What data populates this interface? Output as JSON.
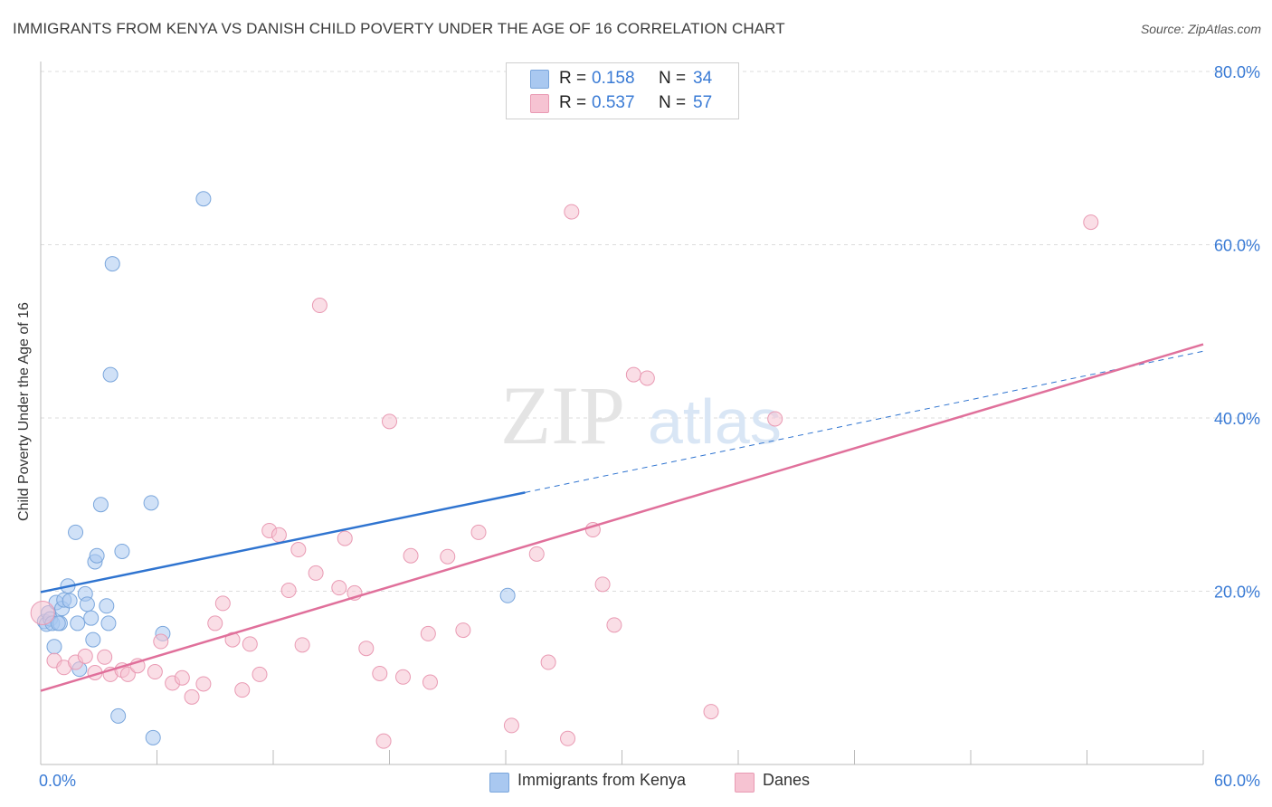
{
  "header": {
    "title": "IMMIGRANTS FROM KENYA VS DANISH CHILD POVERTY UNDER THE AGE OF 16 CORRELATION CHART",
    "source": "Source: ZipAtlas.com"
  },
  "watermark": {
    "zip": "ZIP",
    "atlas": "atlas"
  },
  "legend_top": {
    "r_label": "R =",
    "n_label": "N =",
    "rows": [
      {
        "r": "0.158",
        "n": "34"
      },
      {
        "r": "0.537",
        "n": "57"
      }
    ]
  },
  "colors": {
    "kenya_fill": "#a9c8f0",
    "kenya_stroke": "#7aa6dc",
    "kenya_line": "#2f74d0",
    "danes_fill": "#f6c3d2",
    "danes_stroke": "#e99ab3",
    "danes_line": "#e0709b",
    "tick_text": "#3a7bd5",
    "grid": "#dcdcdc"
  },
  "chart_data": {
    "type": "scatter",
    "title": "IMMIGRANTS FROM KENYA VS DANISH CHILD POVERTY UNDER THE AGE OF 16 CORRELATION CHART",
    "xlabel": "",
    "ylabel": "Child Poverty Under the Age of 16",
    "xlim": [
      0,
      60
    ],
    "ylim": [
      0,
      80
    ],
    "x_tick_labels": [
      "0.0%",
      "60.0%"
    ],
    "y_ticks": [
      20,
      40,
      60,
      80
    ],
    "y_tick_labels": [
      "20.0%",
      "40.0%",
      "60.0%",
      "80.0%"
    ],
    "grid": true,
    "legend_position": "top-center",
    "series": [
      {
        "name": "Immigrants from Kenya",
        "r": 0.158,
        "n": 34,
        "points": [
          [
            0.2,
            16.5
          ],
          [
            0.3,
            16.2
          ],
          [
            0.4,
            17.5
          ],
          [
            0.5,
            16.8
          ],
          [
            0.6,
            16.3
          ],
          [
            0.7,
            13.6
          ],
          [
            0.8,
            18.7
          ],
          [
            1.0,
            16.3
          ],
          [
            1.1,
            18.0
          ],
          [
            1.2,
            19.0
          ],
          [
            1.4,
            20.6
          ],
          [
            1.5,
            18.9
          ],
          [
            1.8,
            26.8
          ],
          [
            1.9,
            16.3
          ],
          [
            2.0,
            11.0
          ],
          [
            2.3,
            19.7
          ],
          [
            2.4,
            18.5
          ],
          [
            2.6,
            16.9
          ],
          [
            2.7,
            14.4
          ],
          [
            2.8,
            23.4
          ],
          [
            2.9,
            24.1
          ],
          [
            3.1,
            30.0
          ],
          [
            3.4,
            18.3
          ],
          [
            3.5,
            16.3
          ],
          [
            3.7,
            57.8
          ],
          [
            3.6,
            45.0
          ],
          [
            4.2,
            24.6
          ],
          [
            4.0,
            5.6
          ],
          [
            5.7,
            30.2
          ],
          [
            5.8,
            3.1
          ],
          [
            6.3,
            15.1
          ],
          [
            8.4,
            65.3
          ],
          [
            24.1,
            19.5
          ],
          [
            0.9,
            16.3
          ]
        ],
        "trend": {
          "x0": 0,
          "y0": 19.9,
          "x1": 25,
          "y1": 31.4,
          "dashed_to_x": 60,
          "dashed_to_y": 47.7
        }
      },
      {
        "name": "Danes",
        "r": 0.537,
        "n": 57,
        "points": [
          [
            0.1,
            17.5
          ],
          [
            0.7,
            12.0
          ],
          [
            1.2,
            11.2
          ],
          [
            1.8,
            11.8
          ],
          [
            2.3,
            12.5
          ],
          [
            2.8,
            10.6
          ],
          [
            3.3,
            12.4
          ],
          [
            3.6,
            10.4
          ],
          [
            4.2,
            10.9
          ],
          [
            4.5,
            10.4
          ],
          [
            5.0,
            11.4
          ],
          [
            5.9,
            10.7
          ],
          [
            6.2,
            14.2
          ],
          [
            6.8,
            9.4
          ],
          [
            7.3,
            10.0
          ],
          [
            7.8,
            7.8
          ],
          [
            8.4,
            9.3
          ],
          [
            9.0,
            16.3
          ],
          [
            9.4,
            18.6
          ],
          [
            9.9,
            14.4
          ],
          [
            10.4,
            8.6
          ],
          [
            10.8,
            13.9
          ],
          [
            11.3,
            10.4
          ],
          [
            11.8,
            27.0
          ],
          [
            12.3,
            26.5
          ],
          [
            12.8,
            20.1
          ],
          [
            13.3,
            24.8
          ],
          [
            13.5,
            13.8
          ],
          [
            14.2,
            22.1
          ],
          [
            14.4,
            53.0
          ],
          [
            15.4,
            20.4
          ],
          [
            15.7,
            26.1
          ],
          [
            16.2,
            19.8
          ],
          [
            16.8,
            13.4
          ],
          [
            17.5,
            10.5
          ],
          [
            17.7,
            2.7
          ],
          [
            18.0,
            39.6
          ],
          [
            18.7,
            10.1
          ],
          [
            19.1,
            24.1
          ],
          [
            20.0,
            15.1
          ],
          [
            20.1,
            9.5
          ],
          [
            21.0,
            24.0
          ],
          [
            21.8,
            15.5
          ],
          [
            22.6,
            26.8
          ],
          [
            24.3,
            4.5
          ],
          [
            25.6,
            24.3
          ],
          [
            26.2,
            11.8
          ],
          [
            27.2,
            3.0
          ],
          [
            27.4,
            63.8
          ],
          [
            28.5,
            27.1
          ],
          [
            29.0,
            20.8
          ],
          [
            29.6,
            16.1
          ],
          [
            30.6,
            45.0
          ],
          [
            31.3,
            44.6
          ],
          [
            34.6,
            6.1
          ],
          [
            37.9,
            39.9
          ],
          [
            54.2,
            62.6
          ]
        ],
        "trend": {
          "x0": 0,
          "y0": 8.5,
          "x1": 60,
          "y1": 48.5
        }
      }
    ]
  },
  "legend_bottom": {
    "items": [
      {
        "label": "Immigrants from Kenya"
      },
      {
        "label": "Danes"
      }
    ]
  }
}
